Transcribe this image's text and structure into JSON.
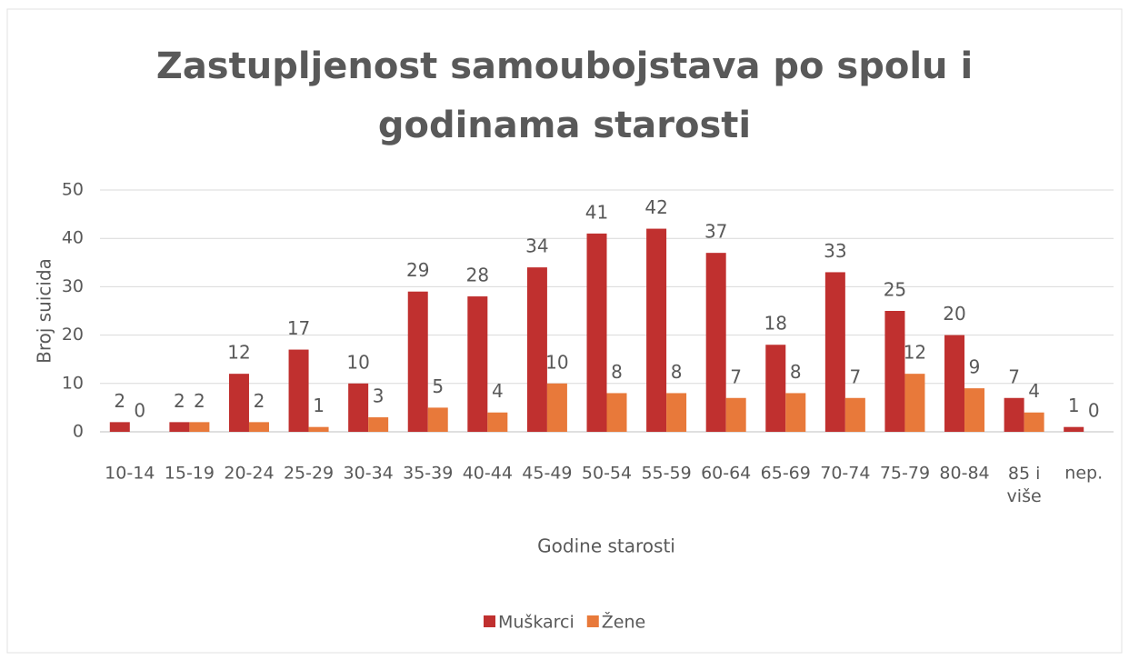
{
  "chart_data": {
    "type": "bar",
    "title": "Zastupljenost samoubojstava po spolu i godinama starosti",
    "x_label": "Godine starosti",
    "y_label": "Broj suicida",
    "categories": [
      "10-14",
      "15-19",
      "20-24",
      "25-29",
      "30-34",
      "35-39",
      "40-44",
      "45-49",
      "50-54",
      "55-59",
      "60-64",
      "65-69",
      "70-74",
      "75-79",
      "80-84",
      "85 i više",
      "nep."
    ],
    "series": [
      {
        "name": "Muškarci",
        "color": "#c0302f",
        "values": [
          2,
          2,
          12,
          17,
          10,
          29,
          28,
          34,
          41,
          42,
          37,
          18,
          33,
          25,
          20,
          7,
          1
        ]
      },
      {
        "name": "Žene",
        "color": "#e8793a",
        "values": [
          0,
          2,
          2,
          1,
          3,
          5,
          4,
          10,
          8,
          8,
          7,
          8,
          7,
          12,
          9,
          4,
          0
        ]
      }
    ],
    "ylim": [
      0,
      50
    ],
    "yticks": [
      0,
      10,
      20,
      30,
      40,
      50
    ],
    "grid": true,
    "legend": "bottom"
  }
}
